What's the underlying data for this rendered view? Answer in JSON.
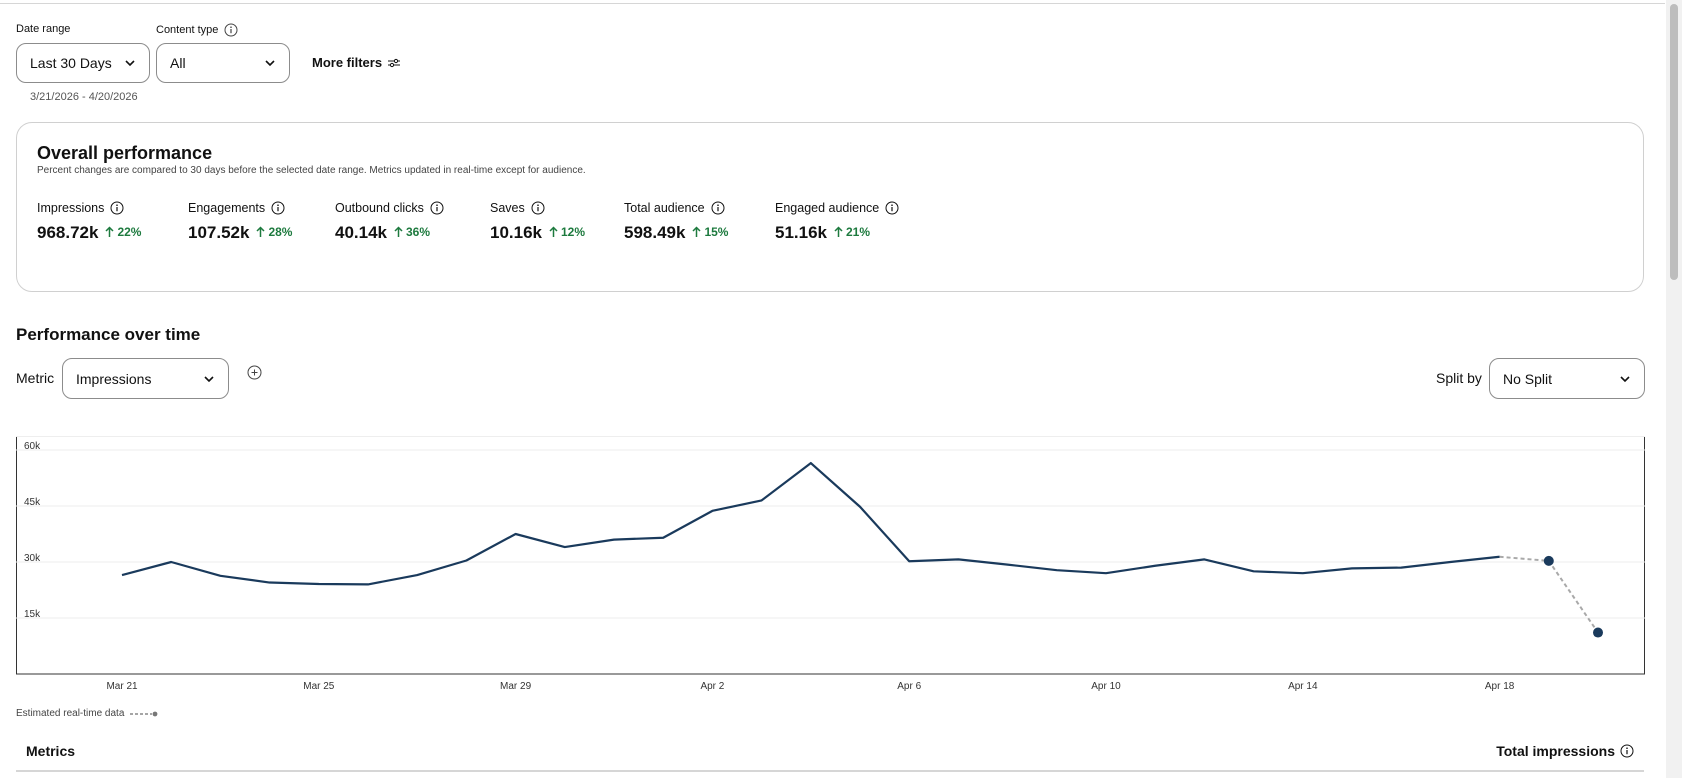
{
  "filters": {
    "date_range_label": "Date range",
    "date_range_value": "Last 30 Days",
    "content_type_label": "Content type",
    "content_type_value": "All",
    "more_filters_label": "More filters",
    "range_text": "3/21/2026 - 4/20/2026"
  },
  "overall": {
    "title": "Overall performance",
    "subtitle": "Percent changes are compared to 30 days before the selected date range. Metrics updated in real-time except for audience.",
    "metrics": [
      {
        "label": "Impressions",
        "value": "968.72k",
        "change": "22%"
      },
      {
        "label": "Engagements",
        "value": "107.52k",
        "change": "28%"
      },
      {
        "label": "Outbound clicks",
        "value": "40.14k",
        "change": "36%"
      },
      {
        "label": "Saves",
        "value": "10.16k",
        "change": "12%"
      },
      {
        "label": "Total audience",
        "value": "598.49k",
        "change": "15%"
      },
      {
        "label": "Engaged audience",
        "value": "51.16k",
        "change": "21%"
      }
    ],
    "positive_color": "#1d7a3e"
  },
  "performance": {
    "title": "Performance over time",
    "metric_label": "Metric",
    "metric_value": "Impressions",
    "split_label": "Split by",
    "split_value": "No Split",
    "estimated_note": "Estimated real-time data"
  },
  "chart_data": {
    "type": "line",
    "x_ticks": [
      "Mar 21",
      "Mar 25",
      "Mar 29",
      "Apr 2",
      "Apr 6",
      "Apr 10",
      "Apr 14",
      "Apr 18"
    ],
    "y_ticks": [
      "15k",
      "30k",
      "45k",
      "60k"
    ],
    "ylim": [
      0,
      60000
    ],
    "grid": true,
    "x": [
      "Mar 21",
      "Mar 22",
      "Mar 23",
      "Mar 24",
      "Mar 25",
      "Mar 26",
      "Mar 27",
      "Mar 28",
      "Mar 29",
      "Mar 30",
      "Mar 31",
      "Apr 1",
      "Apr 2",
      "Apr 3",
      "Apr 4",
      "Apr 5",
      "Apr 6",
      "Apr 7",
      "Apr 8",
      "Apr 9",
      "Apr 10",
      "Apr 11",
      "Apr 12",
      "Apr 13",
      "Apr 14",
      "Apr 15",
      "Apr 16",
      "Apr 17",
      "Apr 18"
    ],
    "values": [
      26500,
      30000,
      26300,
      24500,
      24100,
      24000,
      26500,
      30400,
      37500,
      34000,
      36000,
      36500,
      43700,
      46500,
      56500,
      44800,
      30200,
      30700,
      29300,
      27800,
      27000,
      29000,
      30700,
      27500,
      27000,
      28300,
      28500,
      30000,
      31400
    ],
    "estimated": {
      "x": [
        "Apr 18",
        "Apr 19",
        "Apr 20"
      ],
      "values": [
        31400,
        30300,
        11100
      ]
    },
    "line_color": "#1a3a5c",
    "estimated_color": "#a9a9a9"
  },
  "table": {
    "left_header": "Metrics",
    "right_header": "Total impressions"
  }
}
